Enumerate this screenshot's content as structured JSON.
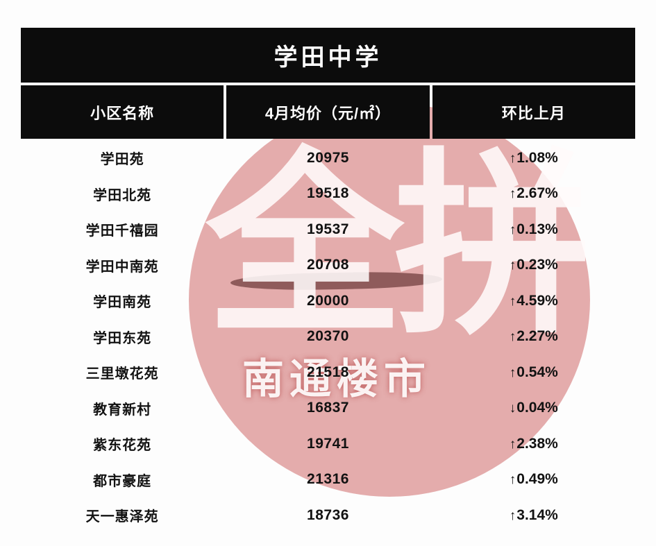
{
  "chart_data": {
    "type": "table",
    "title": "学田中学",
    "columns": [
      "小区名称",
      "4月均价（元/㎡）",
      "环比上月"
    ],
    "rows": [
      {
        "name": "学田苑",
        "price": "20975",
        "arrow": "↑",
        "direction": "up",
        "change": "1.08%"
      },
      {
        "name": "学田北苑",
        "price": "19518",
        "arrow": "↑",
        "direction": "up",
        "change": "2.67%"
      },
      {
        "name": "学田千禧园",
        "price": "19537",
        "arrow": "↑",
        "direction": "up",
        "change": "0.13%"
      },
      {
        "name": "学田中南苑",
        "price": "20708",
        "arrow": "↑",
        "direction": "up",
        "change": "0.23%"
      },
      {
        "name": "学田南苑",
        "price": "20000",
        "arrow": "↑",
        "direction": "up",
        "change": "4.59%"
      },
      {
        "name": "学田东苑",
        "price": "20370",
        "arrow": "↑",
        "direction": "up",
        "change": "2.27%"
      },
      {
        "name": "三里墩花苑",
        "price": "21518",
        "arrow": "↑",
        "direction": "up",
        "change": "0.54%"
      },
      {
        "name": "教育新村",
        "price": "16837",
        "arrow": "↓",
        "direction": "down",
        "change": "0.04%"
      },
      {
        "name": "紫东花苑",
        "price": "19741",
        "arrow": "↑",
        "direction": "up",
        "change": "2.38%"
      },
      {
        "name": "都市豪庭",
        "price": "21316",
        "arrow": "↑",
        "direction": "up",
        "change": "0.49%"
      },
      {
        "name": "天一惠泽苑",
        "price": "18736",
        "arrow": "↑",
        "direction": "up",
        "change": "3.14%"
      }
    ]
  },
  "watermark": {
    "big_text": "全拼",
    "small_text": "南通楼市"
  },
  "colors": {
    "header_bg": "#0c0c0c",
    "header_text": "#ffffff",
    "body_text": "#121212",
    "watermark_red": "#cd6262"
  }
}
